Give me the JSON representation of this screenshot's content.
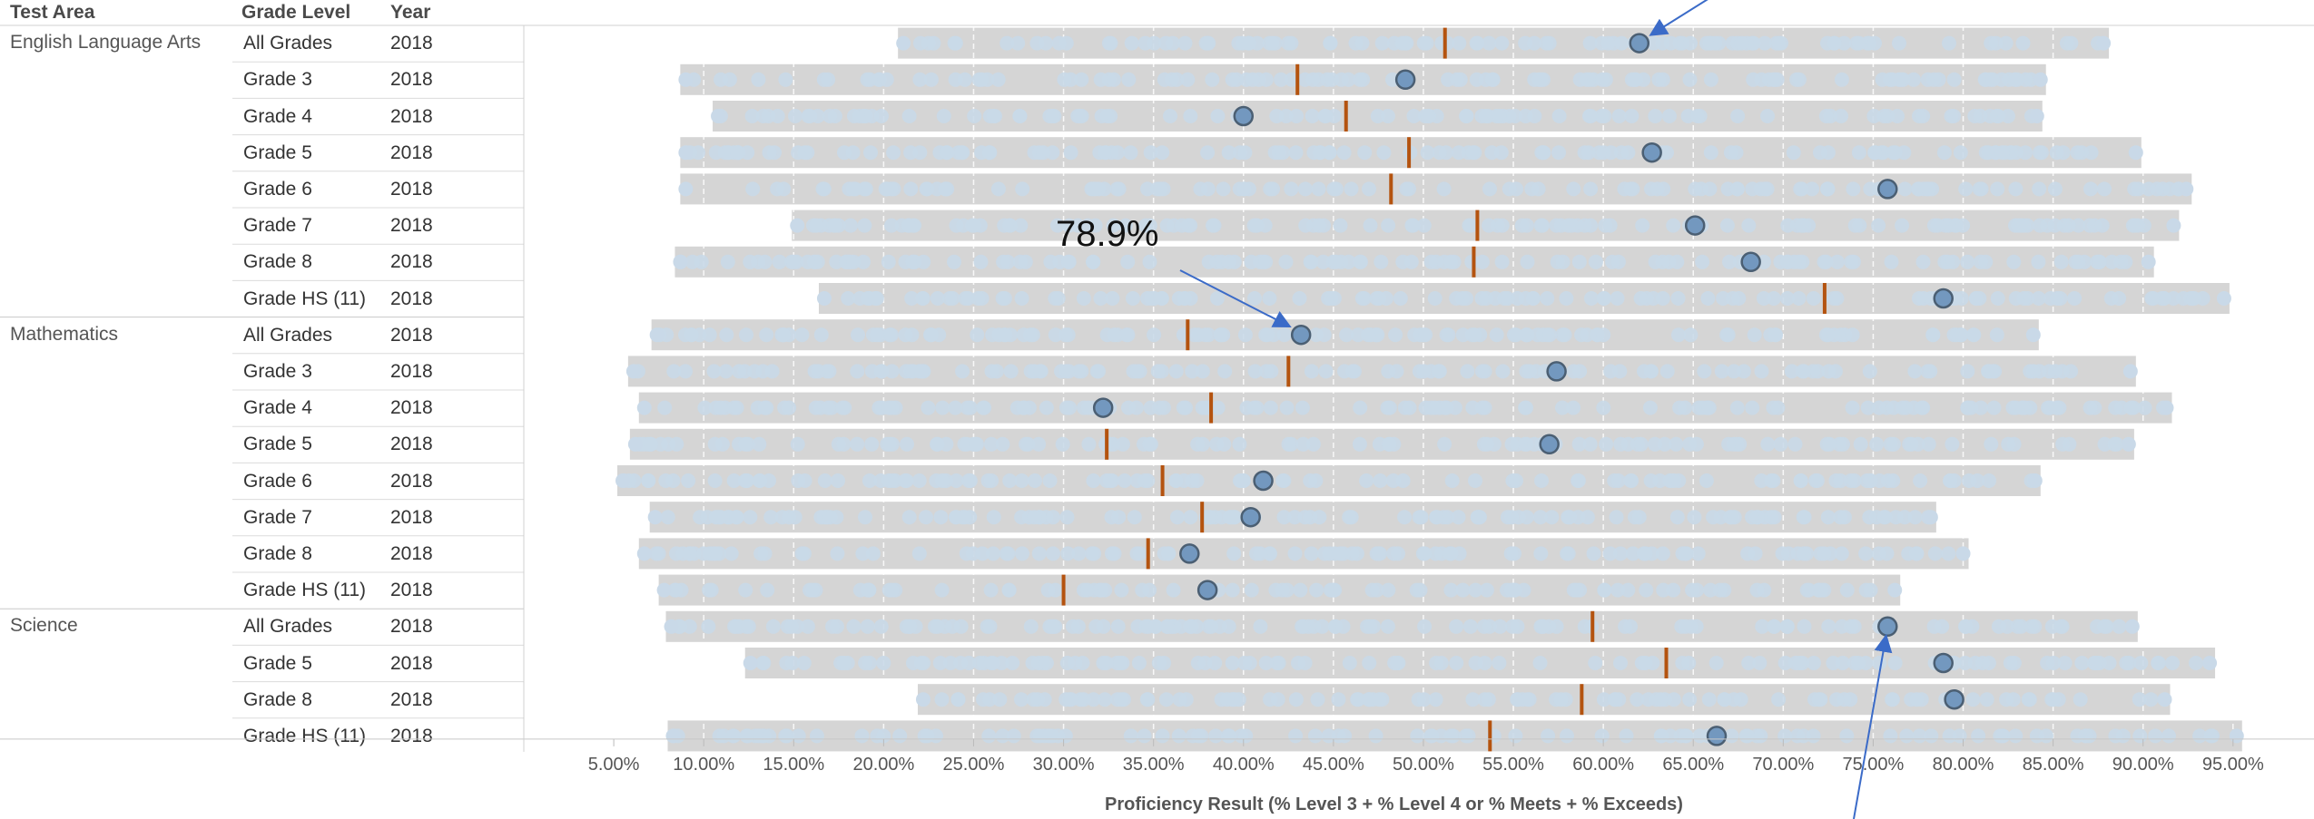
{
  "headers": {
    "area": "Test Area",
    "grade": "Grade Level",
    "year": "Year"
  },
  "colors": {
    "band": "#d5d5d5",
    "background_dot": "#c9d9e8",
    "highlight_dot": "#7398bf",
    "highlight_stroke": "#4b5f73",
    "median_tick": "#b4530f",
    "annotation_arrow": "#3b6bc8",
    "gridline": "#ffffff"
  },
  "chart_data": {
    "type": "scatter",
    "xlabel": "Proficiency Result (% Level 3 + % Level 4 or % Meets + % Exceeds)",
    "xlim": [
      0.0,
      0.995
    ],
    "xticks": [
      0.05,
      0.1,
      0.15,
      0.2,
      0.25,
      0.3,
      0.35,
      0.4,
      0.45,
      0.5,
      0.55,
      0.6,
      0.65,
      0.7,
      0.75,
      0.8,
      0.85,
      0.9,
      0.95
    ],
    "xtick_labels": [
      "5.00%",
      "10.00%",
      "15.00%",
      "20.00%",
      "25.00%",
      "30.00%",
      "35.00%",
      "40.00%",
      "45.00%",
      "50.00%",
      "55.00%",
      "60.00%",
      "65.00%",
      "70.00%",
      "75.00%",
      "80.00%",
      "85.00%",
      "90.00%",
      "95.00%"
    ],
    "grid": true,
    "annotation_label": "78.9%",
    "rows": [
      {
        "area": "English Language Arts",
        "grade": "All Grades",
        "year": "2018",
        "min": 0.211,
        "max": 0.878,
        "highlight": 0.62,
        "median": 0.512
      },
      {
        "area": "",
        "grade": "Grade 3",
        "year": "2018",
        "min": 0.09,
        "max": 0.843,
        "highlight": 0.49,
        "median": 0.43
      },
      {
        "area": "",
        "grade": "Grade 4",
        "year": "2018",
        "min": 0.108,
        "max": 0.841,
        "highlight": 0.4,
        "median": 0.457
      },
      {
        "area": "",
        "grade": "Grade 5",
        "year": "2018",
        "min": 0.09,
        "max": 0.896,
        "highlight": 0.627,
        "median": 0.492
      },
      {
        "area": "",
        "grade": "Grade 6",
        "year": "2018",
        "min": 0.09,
        "max": 0.924,
        "highlight": 0.758,
        "median": 0.482
      },
      {
        "area": "",
        "grade": "Grade 7",
        "year": "2018",
        "min": 0.152,
        "max": 0.917,
        "highlight": 0.651,
        "median": 0.53
      },
      {
        "area": "",
        "grade": "Grade 8",
        "year": "2018",
        "min": 0.087,
        "max": 0.903,
        "highlight": 0.682,
        "median": 0.528
      },
      {
        "area": "",
        "grade": "Grade HS (11)",
        "year": "2018",
        "min": 0.167,
        "max": 0.945,
        "highlight": 0.789,
        "median": 0.723
      },
      {
        "area": "Mathematics",
        "grade": "All Grades",
        "year": "2018",
        "min": 0.074,
        "max": 0.839,
        "highlight": 0.432,
        "median": 0.369
      },
      {
        "area": "",
        "grade": "Grade 3",
        "year": "2018",
        "min": 0.061,
        "max": 0.893,
        "highlight": 0.574,
        "median": 0.425
      },
      {
        "area": "",
        "grade": "Grade 4",
        "year": "2018",
        "min": 0.067,
        "max": 0.913,
        "highlight": 0.322,
        "median": 0.382
      },
      {
        "area": "",
        "grade": "Grade 5",
        "year": "2018",
        "min": 0.062,
        "max": 0.892,
        "highlight": 0.57,
        "median": 0.324
      },
      {
        "area": "",
        "grade": "Grade 6",
        "year": "2018",
        "min": 0.055,
        "max": 0.84,
        "highlight": 0.411,
        "median": 0.355
      },
      {
        "area": "",
        "grade": "Grade 7",
        "year": "2018",
        "min": 0.073,
        "max": 0.782,
        "highlight": 0.404,
        "median": 0.377
      },
      {
        "area": "",
        "grade": "Grade 8",
        "year": "2018",
        "min": 0.067,
        "max": 0.8,
        "highlight": 0.37,
        "median": 0.347
      },
      {
        "area": "",
        "grade": "Grade HS (11)",
        "year": "2018",
        "min": 0.078,
        "max": 0.762,
        "highlight": 0.38,
        "median": 0.3
      },
      {
        "area": "Science",
        "grade": "All Grades",
        "year": "2018",
        "min": 0.082,
        "max": 0.894,
        "highlight": 0.758,
        "median": 0.594
      },
      {
        "area": "",
        "grade": "Grade 5",
        "year": "2018",
        "min": 0.126,
        "max": 0.937,
        "highlight": 0.789,
        "median": 0.635
      },
      {
        "area": "",
        "grade": "Grade 8",
        "year": "2018",
        "min": 0.222,
        "max": 0.912,
        "highlight": 0.795,
        "median": 0.588
      },
      {
        "area": "",
        "grade": "Grade HS (11)",
        "year": "2018",
        "min": 0.083,
        "max": 0.952,
        "highlight": 0.663,
        "median": 0.537
      }
    ]
  }
}
